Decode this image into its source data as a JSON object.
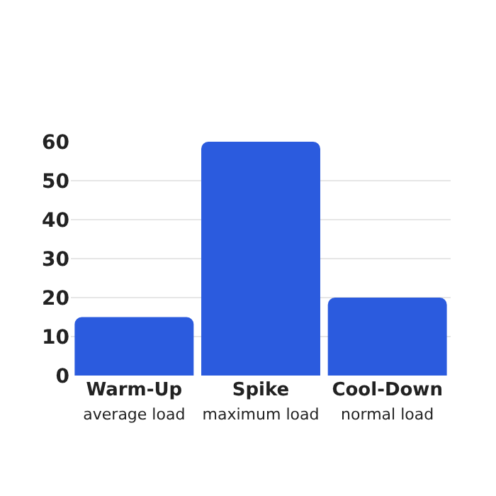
{
  "chart_data": {
    "type": "bar",
    "categories": [
      "Warm-Up\naverage load",
      "Spike\nmaximum load",
      "Cool-Down\nnormal load"
    ],
    "values": [
      15,
      60,
      20
    ],
    "color": "#2b5bde",
    "ylim": [
      0,
      60
    ],
    "yticks": [
      0,
      10,
      20,
      30,
      40,
      50,
      60
    ],
    "grid": "y"
  }
}
